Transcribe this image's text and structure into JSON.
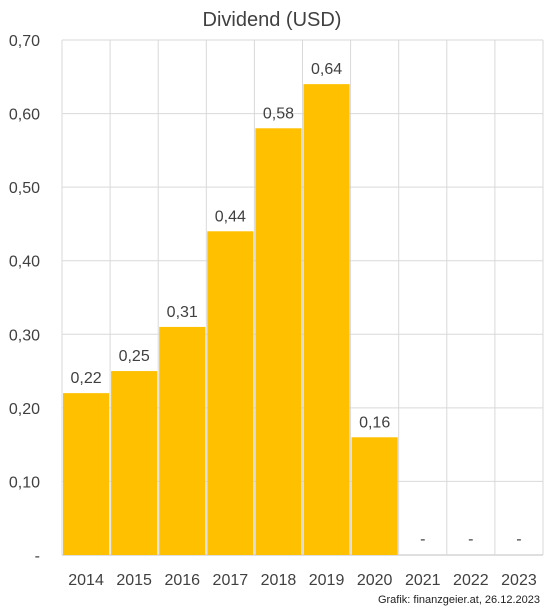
{
  "chart_data": {
    "type": "bar",
    "title": "Dividend (USD)",
    "categories": [
      "2014",
      "2015",
      "2016",
      "2017",
      "2018",
      "2019",
      "2020",
      "2021",
      "2022",
      "2023"
    ],
    "values": [
      0.22,
      0.25,
      0.31,
      0.44,
      0.58,
      0.64,
      0.16,
      null,
      null,
      null
    ],
    "data_labels": [
      "0,22",
      "0,25",
      "0,31",
      "0,44",
      "0,58",
      "0,64",
      "0,16",
      "-",
      "-",
      "-"
    ],
    "ylim": [
      0,
      0.7
    ],
    "yticks": [
      0.0,
      0.1,
      0.2,
      0.3,
      0.4,
      0.5,
      0.6,
      0.7
    ],
    "ytick_labels": [
      "-",
      "0,10",
      "0,20",
      "0,30",
      "0,40",
      "0,50",
      "0,60",
      "0,70"
    ],
    "xlabel": "",
    "ylabel": "",
    "grid": true,
    "bar_color": "#FFC000"
  },
  "credit": "Grafik: finanzgeier.at, 26.12.2023"
}
